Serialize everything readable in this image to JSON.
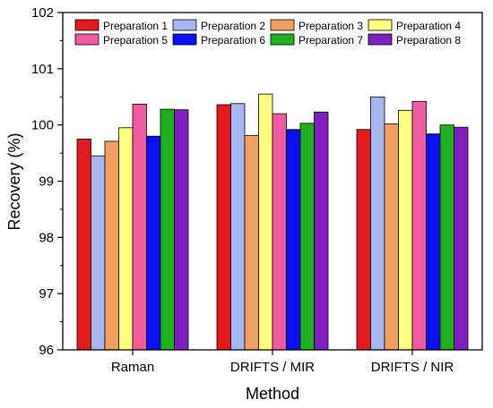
{
  "chart_data": {
    "type": "bar",
    "categories": [
      "Raman",
      "DRIFTS / MIR",
      "DRIFTS / NIR"
    ],
    "series": [
      {
        "name": "Preparation 1",
        "color": "#e41a1c",
        "values": [
          99.75,
          100.36,
          99.92
        ]
      },
      {
        "name": "Preparation 2",
        "color": "#a6b6f2",
        "values": [
          99.45,
          100.38,
          100.5
        ]
      },
      {
        "name": "Preparation 3",
        "color": "#f0a060",
        "values": [
          99.71,
          99.81,
          100.02
        ]
      },
      {
        "name": "Preparation 4",
        "color": "#ffff80",
        "values": [
          99.95,
          100.55,
          100.26
        ]
      },
      {
        "name": "Preparation 5",
        "color": "#f05aa0",
        "values": [
          100.37,
          100.2,
          100.42
        ]
      },
      {
        "name": "Preparation 6",
        "color": "#0a10f0",
        "values": [
          99.8,
          99.92,
          99.84
        ]
      },
      {
        "name": "Preparation 7",
        "color": "#20b020",
        "values": [
          100.28,
          100.03,
          100.0
        ]
      },
      {
        "name": "Preparation 8",
        "color": "#8020c0",
        "values": [
          100.27,
          100.23,
          99.96
        ]
      }
    ],
    "ylim": [
      96,
      102
    ],
    "yticks": [
      "96",
      "97",
      "98",
      "99",
      "100",
      "101",
      "102"
    ],
    "xlabel": "Method",
    "ylabel": "Recovery (%)",
    "legend_position": "top",
    "grid": false
  }
}
